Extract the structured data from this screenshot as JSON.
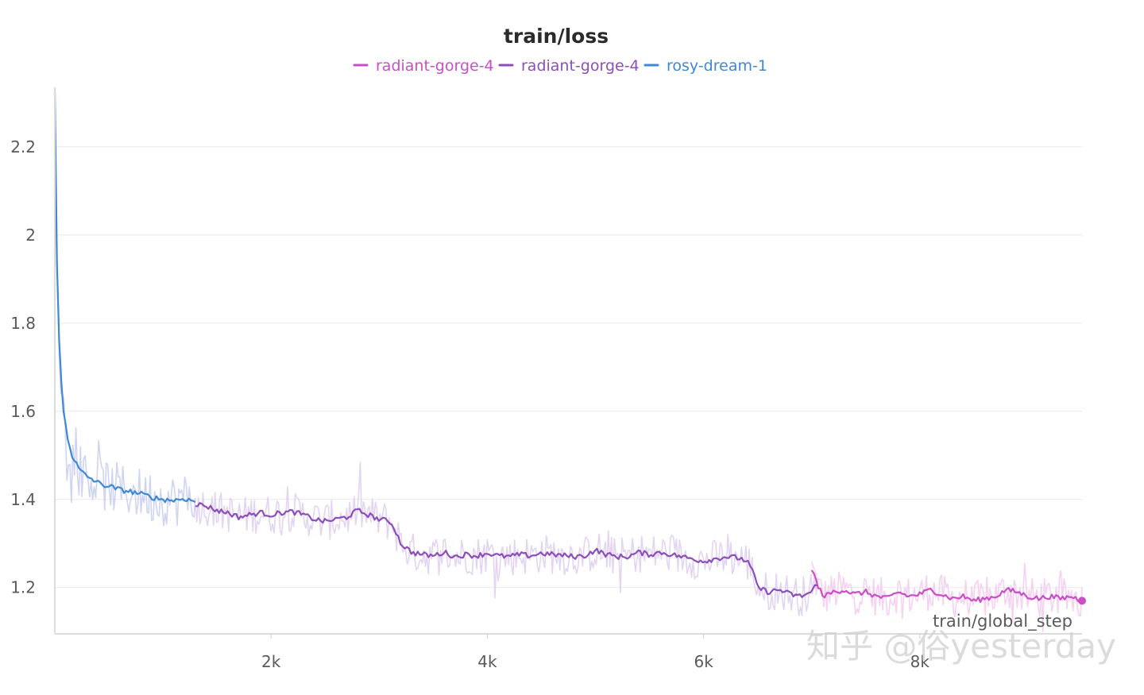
{
  "chart_data": {
    "type": "line",
    "title": "train/loss",
    "xlabel": "train/global_step",
    "ylabel": "",
    "xlim": [
      0,
      9500
    ],
    "ylim": [
      1.095,
      2.335
    ],
    "x_ticks": [
      2000,
      4000,
      6000,
      8000
    ],
    "x_tick_labels": [
      "2k",
      "4k",
      "6k",
      "8k"
    ],
    "y_ticks": [
      1.2,
      1.4,
      1.6,
      1.8,
      2.0,
      2.2
    ],
    "y_tick_labels": [
      "1.2",
      "1.4",
      "1.6",
      "1.8",
      "2",
      "2.2"
    ],
    "grid": true,
    "legend_position": "top-center",
    "series": [
      {
        "name": "radiant-gorge-4",
        "color": "#c94fc5",
        "x": [
          7000,
          7060,
          7120,
          7200,
          7300,
          7400,
          7500,
          7600,
          7700,
          7800,
          7900,
          8000,
          8100,
          8200,
          8300,
          8400,
          8500,
          8600,
          8700,
          8800,
          8900,
          9000,
          9100,
          9200,
          9300,
          9400,
          9500
        ],
        "y": [
          1.245,
          1.2,
          1.18,
          1.19,
          1.195,
          1.185,
          1.19,
          1.18,
          1.175,
          1.19,
          1.18,
          1.185,
          1.195,
          1.185,
          1.175,
          1.18,
          1.17,
          1.175,
          1.18,
          1.195,
          1.19,
          1.18,
          1.175,
          1.18,
          1.175,
          1.18,
          1.17
        ]
      },
      {
        "name": "radiant-gorge-4",
        "color": "#8c4fb8",
        "x": [
          1300,
          1400,
          1500,
          1600,
          1700,
          1800,
          1900,
          2000,
          2100,
          2200,
          2300,
          2400,
          2500,
          2600,
          2700,
          2800,
          2900,
          3000,
          3100,
          3150,
          3200,
          3300,
          3400,
          3500,
          3600,
          3700,
          3800,
          3900,
          4000,
          4100,
          4200,
          4300,
          4400,
          4500,
          4600,
          4700,
          4800,
          4900,
          5000,
          5100,
          5200,
          5300,
          5400,
          5500,
          5600,
          5700,
          5800,
          5900,
          6000,
          6100,
          6200,
          6300,
          6350,
          6400,
          6450,
          6500,
          6600,
          6700,
          6800,
          6900,
          7000,
          7050
        ],
        "y": [
          1.39,
          1.385,
          1.375,
          1.37,
          1.36,
          1.365,
          1.37,
          1.365,
          1.37,
          1.372,
          1.365,
          1.355,
          1.35,
          1.355,
          1.36,
          1.375,
          1.365,
          1.355,
          1.35,
          1.33,
          1.3,
          1.28,
          1.275,
          1.272,
          1.28,
          1.27,
          1.275,
          1.272,
          1.278,
          1.272,
          1.27,
          1.275,
          1.272,
          1.278,
          1.275,
          1.273,
          1.27,
          1.272,
          1.285,
          1.275,
          1.27,
          1.27,
          1.28,
          1.275,
          1.28,
          1.275,
          1.27,
          1.265,
          1.26,
          1.265,
          1.27,
          1.268,
          1.265,
          1.26,
          1.24,
          1.2,
          1.19,
          1.195,
          1.185,
          1.18,
          1.19,
          1.21
        ]
      },
      {
        "name": "rosy-dream-1",
        "color": "#3f88d6",
        "x": [
          0,
          10,
          25,
          50,
          80,
          120,
          160,
          220,
          280,
          350,
          420,
          500,
          600,
          700,
          800,
          900,
          1000,
          1100,
          1200,
          1300
        ],
        "y": [
          2.33,
          2.1,
          1.85,
          1.7,
          1.6,
          1.54,
          1.5,
          1.47,
          1.455,
          1.445,
          1.435,
          1.43,
          1.422,
          1.418,
          1.412,
          1.405,
          1.4,
          1.398,
          1.402,
          1.395
        ]
      }
    ]
  },
  "legend": {
    "items": [
      {
        "label": "radiant-gorge-4",
        "color": "#c94fc5"
      },
      {
        "label": "radiant-gorge-4",
        "color": "#8c4fb8"
      },
      {
        "label": "rosy-dream-1",
        "color": "#3f88d6"
      }
    ]
  },
  "watermark": {
    "text": "知乎 @俗yesterday"
  }
}
